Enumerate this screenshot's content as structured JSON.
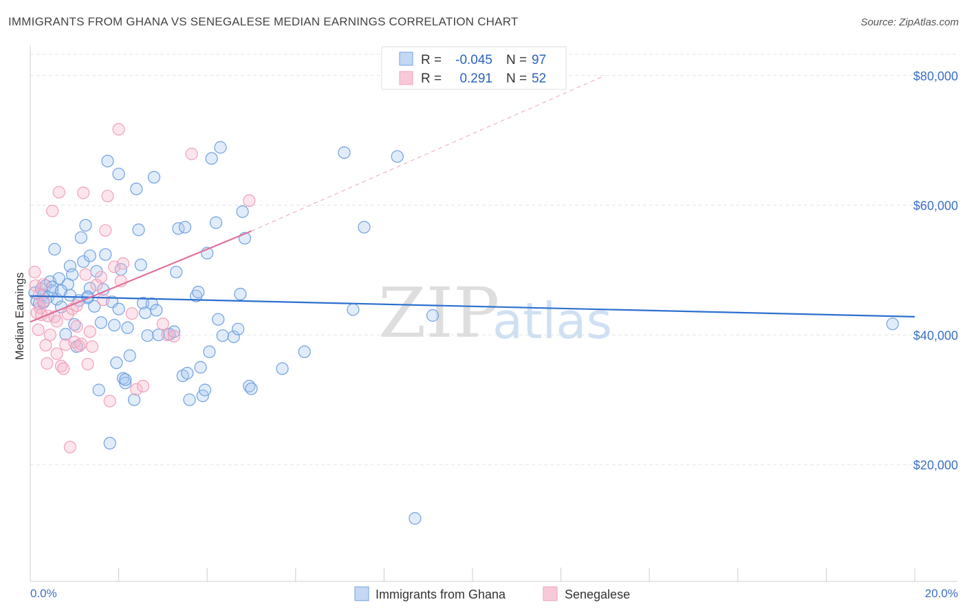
{
  "title": "IMMIGRANTS FROM GHANA VS SENEGALESE MEDIAN EARNINGS CORRELATION CHART",
  "source": "Source: ZipAtlas.com",
  "watermark": {
    "zip": "ZIP",
    "atlas": "atlas"
  },
  "colors": {
    "ghana": "#6fa0e0",
    "ghana_line": "#2a6fcf",
    "senegal": "#f0a0bc",
    "senegal_line": "#e0709a",
    "axis_label": "#3a6fc4",
    "grid": "#e3e3e3"
  },
  "legend": {
    "rows": [
      {
        "r_label": "R =",
        "r_value": "-0.045",
        "n_label": "N =",
        "n_value": "97"
      },
      {
        "r_label": "R =",
        "r_value": "0.291",
        "n_label": "N =",
        "n_value": "52"
      }
    ]
  },
  "chart_data": {
    "type": "scatter",
    "xlabel": "",
    "ylabel": "Median Earnings",
    "xlim": [
      0,
      20
    ],
    "ylim": [
      2000,
      84000
    ],
    "x_tick_labels": [
      "0.0%",
      "20.0%"
    ],
    "y_ticks": [
      20000,
      40000,
      60000,
      80000
    ],
    "y_tick_labels": [
      "$20,000",
      "$40,000",
      "$60,000",
      "$80,000"
    ],
    "grid": true,
    "legend_position": "bottom",
    "series": [
      {
        "name": "Immigrants from Ghana",
        "trend": {
          "x": [
            0,
            20
          ],
          "y": [
            46000,
            42800
          ]
        },
        "points": [
          [
            0.1,
            46500
          ],
          [
            0.15,
            45200
          ],
          [
            0.2,
            44800
          ],
          [
            0.25,
            47100
          ],
          [
            0.3,
            46200
          ],
          [
            0.35,
            47600
          ],
          [
            0.4,
            45800
          ],
          [
            0.45,
            48200
          ],
          [
            0.5,
            46800
          ],
          [
            0.55,
            53200
          ],
          [
            0.6,
            45500
          ],
          [
            0.65,
            48700
          ],
          [
            0.7,
            44300
          ],
          [
            0.8,
            40100
          ],
          [
            0.85,
            47800
          ],
          [
            0.9,
            50600
          ],
          [
            0.95,
            49300
          ],
          [
            1.0,
            41600
          ],
          [
            1.05,
            38200
          ],
          [
            1.1,
            45300
          ],
          [
            1.15,
            55000
          ],
          [
            1.2,
            51300
          ],
          [
            1.25,
            56900
          ],
          [
            1.3,
            45700
          ],
          [
            1.35,
            47200
          ],
          [
            1.45,
            44400
          ],
          [
            1.5,
            49800
          ],
          [
            1.55,
            31500
          ],
          [
            1.6,
            41900
          ],
          [
            1.65,
            47000
          ],
          [
            1.7,
            52400
          ],
          [
            1.75,
            66800
          ],
          [
            1.8,
            23300
          ],
          [
            1.85,
            45100
          ],
          [
            1.9,
            41500
          ],
          [
            1.95,
            35700
          ],
          [
            2.0,
            64800
          ],
          [
            2.05,
            50100
          ],
          [
            2.1,
            33300
          ],
          [
            2.15,
            32600
          ],
          [
            2.2,
            41100
          ],
          [
            2.25,
            36800
          ],
          [
            2.35,
            30000
          ],
          [
            2.4,
            62500
          ],
          [
            2.45,
            56200
          ],
          [
            2.5,
            50800
          ],
          [
            2.55,
            44900
          ],
          [
            2.6,
            43400
          ],
          [
            2.65,
            39900
          ],
          [
            2.75,
            44800
          ],
          [
            2.8,
            64300
          ],
          [
            2.85,
            43800
          ],
          [
            2.9,
            40000
          ],
          [
            3.15,
            40100
          ],
          [
            3.25,
            40500
          ],
          [
            3.3,
            49700
          ],
          [
            3.35,
            56400
          ],
          [
            3.45,
            33700
          ],
          [
            3.5,
            56600
          ],
          [
            3.55,
            34100
          ],
          [
            3.6,
            30000
          ],
          [
            3.75,
            46000
          ],
          [
            3.8,
            46600
          ],
          [
            3.9,
            30600
          ],
          [
            3.95,
            31500
          ],
          [
            4.0,
            52600
          ],
          [
            4.05,
            37400
          ],
          [
            4.1,
            67200
          ],
          [
            4.2,
            57300
          ],
          [
            4.25,
            42400
          ],
          [
            4.3,
            68900
          ],
          [
            4.35,
            39900
          ],
          [
            4.6,
            39700
          ],
          [
            4.7,
            40900
          ],
          [
            4.75,
            46300
          ],
          [
            4.8,
            59000
          ],
          [
            4.85,
            54900
          ],
          [
            4.95,
            32100
          ],
          [
            5.0,
            31700
          ],
          [
            5.7,
            34800
          ],
          [
            6.2,
            37400
          ],
          [
            7.1,
            68100
          ],
          [
            7.3,
            43900
          ],
          [
            7.55,
            56600
          ],
          [
            8.3,
            67500
          ],
          [
            8.7,
            11700
          ],
          [
            9.1,
            43000
          ],
          [
            19.5,
            41700
          ],
          [
            0.3,
            45000
          ],
          [
            0.5,
            47400
          ],
          [
            0.7,
            46800
          ],
          [
            0.9,
            46100
          ],
          [
            1.3,
            45900
          ],
          [
            2.15,
            33100
          ],
          [
            1.35,
            52200
          ],
          [
            2.0,
            44000
          ],
          [
            3.85,
            35000
          ]
        ]
      },
      {
        "name": "Senegalese",
        "trend": {
          "x": [
            0,
            5
          ],
          "y": [
            42000,
            56000
          ]
        },
        "trend_ext": {
          "x": [
            5,
            13
          ],
          "y": [
            56000,
            80000
          ]
        },
        "points": [
          [
            0.1,
            49700
          ],
          [
            0.12,
            47600
          ],
          [
            0.15,
            43400
          ],
          [
            0.18,
            40800
          ],
          [
            0.2,
            46200
          ],
          [
            0.22,
            44200
          ],
          [
            0.25,
            43100
          ],
          [
            0.3,
            47800
          ],
          [
            0.35,
            38400
          ],
          [
            0.38,
            35600
          ],
          [
            0.4,
            42900
          ],
          [
            0.45,
            40000
          ],
          [
            0.5,
            59100
          ],
          [
            0.55,
            42800
          ],
          [
            0.6,
            37100
          ],
          [
            0.65,
            62000
          ],
          [
            0.7,
            35200
          ],
          [
            0.75,
            34800
          ],
          [
            0.8,
            38500
          ],
          [
            0.85,
            43200
          ],
          [
            0.9,
            22700
          ],
          [
            0.95,
            44000
          ],
          [
            1.0,
            38900
          ],
          [
            1.05,
            41300
          ],
          [
            1.1,
            38300
          ],
          [
            1.15,
            38600
          ],
          [
            1.2,
            61900
          ],
          [
            1.25,
            49300
          ],
          [
            1.3,
            35500
          ],
          [
            1.35,
            40500
          ],
          [
            1.4,
            38200
          ],
          [
            1.5,
            47700
          ],
          [
            1.6,
            48900
          ],
          [
            1.65,
            45400
          ],
          [
            1.7,
            56100
          ],
          [
            1.75,
            61400
          ],
          [
            1.8,
            29800
          ],
          [
            1.9,
            50500
          ],
          [
            2.0,
            71700
          ],
          [
            2.05,
            48300
          ],
          [
            2.1,
            51000
          ],
          [
            2.4,
            31600
          ],
          [
            2.55,
            32100
          ],
          [
            3.0,
            41700
          ],
          [
            3.1,
            40000
          ],
          [
            3.25,
            39800
          ],
          [
            3.65,
            67900
          ],
          [
            4.95,
            60700
          ],
          [
            1.05,
            44500
          ],
          [
            0.3,
            45200
          ],
          [
            0.6,
            42100
          ],
          [
            2.3,
            43300
          ]
        ]
      }
    ]
  },
  "bottom_legend": [
    "Immigrants from Ghana",
    "Senegalese"
  ]
}
